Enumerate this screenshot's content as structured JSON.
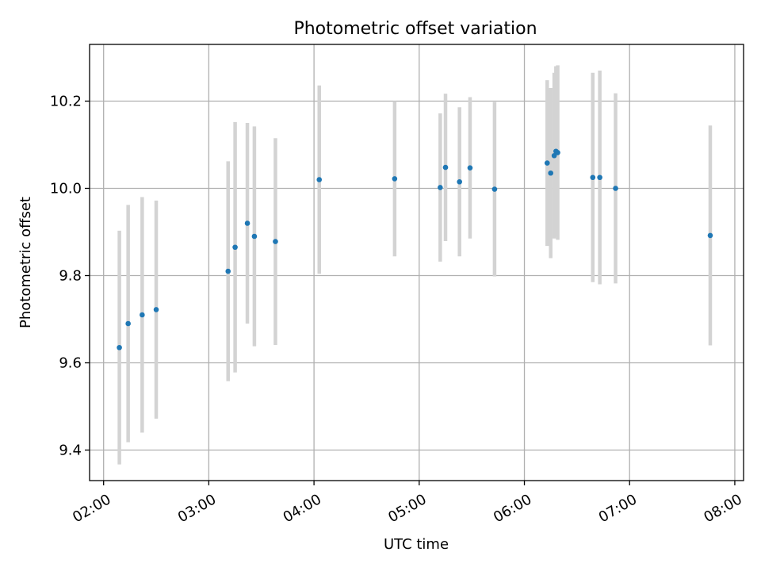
{
  "chart_data": {
    "type": "scatter",
    "title": "Photometric offset variation",
    "xlabel": "UTC time",
    "ylabel": "Photometric offset",
    "xlim": [
      "01:52",
      "08:05"
    ],
    "ylim": [
      9.33,
      10.33
    ],
    "grid": true,
    "x_ticks": [
      "02:00",
      "03:00",
      "04:00",
      "05:00",
      "06:00",
      "07:00",
      "08:00"
    ],
    "y_ticks": [
      9.4,
      9.6,
      9.8,
      10.0,
      10.2
    ],
    "y_tick_labels": [
      "9.4",
      "9.6",
      "9.8",
      "10.0",
      "10.2"
    ],
    "colors": {
      "point": "#1f77b4",
      "errorbar": "#d3d3d3",
      "grid": "#b0b0b0"
    },
    "series": [
      {
        "points": [
          {
            "x": "02:09",
            "y": 9.635,
            "err": 0.268
          },
          {
            "x": "02:14",
            "y": 9.69,
            "err": 0.272
          },
          {
            "x": "02:22",
            "y": 9.71,
            "err": 0.27
          },
          {
            "x": "02:30",
            "y": 9.722,
            "err": 0.25
          },
          {
            "x": "03:11",
            "y": 9.81,
            "err": 0.252
          },
          {
            "x": "03:15",
            "y": 9.865,
            "err": 0.287
          },
          {
            "x": "03:22",
            "y": 9.92,
            "err": 0.23
          },
          {
            "x": "03:26",
            "y": 9.89,
            "err": 0.252
          },
          {
            "x": "03:38",
            "y": 9.878,
            "err": 0.237
          },
          {
            "x": "04:03",
            "y": 10.02,
            "err": 0.216
          },
          {
            "x": "04:46",
            "y": 10.022,
            "err": 0.178
          },
          {
            "x": "05:12",
            "y": 10.002,
            "err": 0.17
          },
          {
            "x": "05:15",
            "y": 10.048,
            "err": 0.169
          },
          {
            "x": "05:23",
            "y": 10.015,
            "err": 0.171
          },
          {
            "x": "05:29",
            "y": 10.047,
            "err": 0.162
          },
          {
            "x": "05:43",
            "y": 9.998,
            "err": 0.2
          },
          {
            "x": "06:13",
            "y": 10.058,
            "err": 0.19
          },
          {
            "x": "06:15",
            "y": 10.035,
            "err": 0.195
          },
          {
            "x": "06:17",
            "y": 10.075,
            "err": 0.19
          },
          {
            "x": "06:18",
            "y": 10.085,
            "err": 0.195
          },
          {
            "x": "06:19",
            "y": 10.082,
            "err": 0.2
          },
          {
            "x": "06:39",
            "y": 10.025,
            "err": 0.24
          },
          {
            "x": "06:43",
            "y": 10.025,
            "err": 0.245
          },
          {
            "x": "06:52",
            "y": 10.0,
            "err": 0.218
          },
          {
            "x": "07:46",
            "y": 9.892,
            "err": 0.252
          }
        ]
      }
    ]
  }
}
